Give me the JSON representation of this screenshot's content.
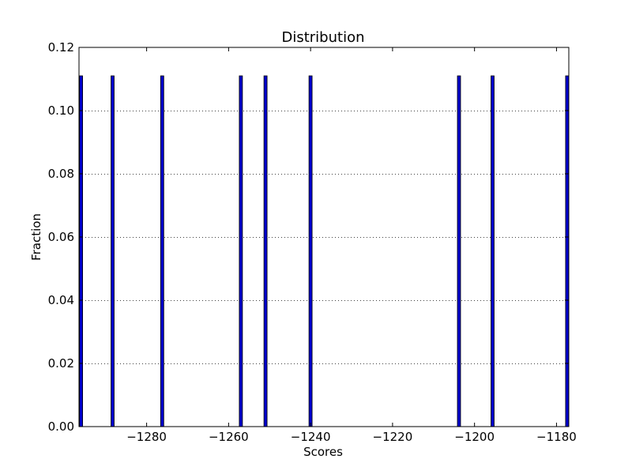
{
  "chart_data": {
    "type": "bar",
    "title": "Distribution",
    "xlabel": "Scores",
    "ylabel": "Fraction",
    "xlim": [
      -1296.5,
      -1177.0
    ],
    "ylim": [
      0,
      0.12
    ],
    "xticks": [
      -1280,
      -1260,
      -1240,
      -1220,
      -1200,
      -1180
    ],
    "xtick_labels": [
      "−1280",
      "−1260",
      "−1240",
      "−1220",
      "−1200",
      "−1180"
    ],
    "yticks": [
      0.0,
      0.02,
      0.04,
      0.06,
      0.08,
      0.1,
      0.12
    ],
    "ytick_labels": [
      "0.00",
      "0.02",
      "0.04",
      "0.06",
      "0.08",
      "0.10",
      "0.12"
    ],
    "grid": "horizontal dotted",
    "bar_color": "#0000cc",
    "bars": [
      {
        "x": -1296.0,
        "value": 0.111
      },
      {
        "x": -1288.3,
        "value": 0.111
      },
      {
        "x": -1276.2,
        "value": 0.111
      },
      {
        "x": -1257.0,
        "value": 0.111
      },
      {
        "x": -1251.0,
        "value": 0.111
      },
      {
        "x": -1240.0,
        "value": 0.111
      },
      {
        "x": -1203.8,
        "value": 0.111
      },
      {
        "x": -1195.6,
        "value": 0.111
      },
      {
        "x": -1177.4,
        "value": 0.111
      }
    ]
  }
}
